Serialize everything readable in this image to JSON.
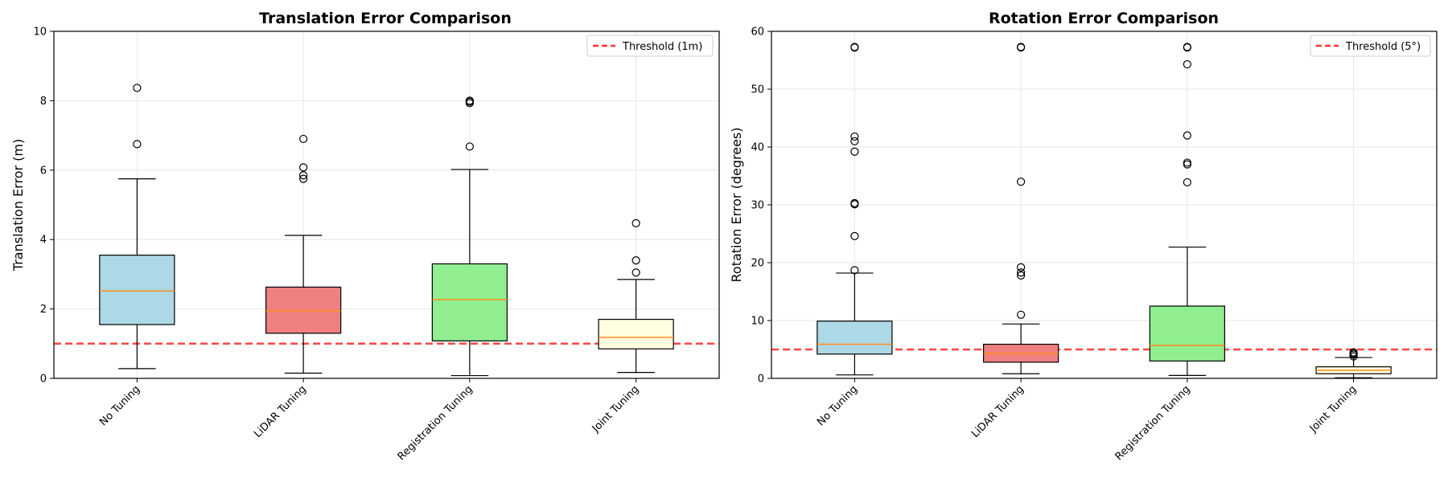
{
  "chart_data": [
    {
      "type": "box",
      "title": "Translation Error Comparison",
      "ylabel": "Translation Error (m)",
      "xlabel": "",
      "ylim": [
        0,
        10
      ],
      "yticks": [
        0,
        2,
        4,
        6,
        8,
        10
      ],
      "grid": true,
      "legend_position": "top-right",
      "threshold": {
        "value": 1,
        "label": "Threshold (1m)",
        "color": "#ff3333"
      },
      "categories": [
        "No Tuning",
        "LiDAR Tuning",
        "Registration Tuning",
        "Joint Tuning"
      ],
      "colors": [
        "#add8e6",
        "#f08080",
        "#90ee90",
        "#ffffe0"
      ],
      "median_color": "#ff8c1a",
      "boxes": [
        {
          "whisker_low": 0.28,
          "q1": 1.55,
          "median": 2.52,
          "q3": 3.55,
          "whisker_high": 5.75,
          "outliers": [
            6.75,
            8.37
          ]
        },
        {
          "whisker_low": 0.15,
          "q1": 1.3,
          "median": 1.95,
          "q3": 2.63,
          "whisker_high": 4.12,
          "outliers": [
            5.75,
            5.85,
            6.08,
            6.9
          ]
        },
        {
          "whisker_low": 0.08,
          "q1": 1.08,
          "median": 2.27,
          "q3": 3.3,
          "whisker_high": 6.02,
          "outliers": [
            6.68,
            7.93,
            7.97,
            8.0
          ]
        },
        {
          "whisker_low": 0.17,
          "q1": 0.85,
          "median": 1.18,
          "q3": 1.7,
          "whisker_high": 2.85,
          "outliers": [
            3.05,
            3.4,
            4.47
          ]
        }
      ]
    },
    {
      "type": "box",
      "title": "Rotation Error Comparison",
      "ylabel": "Rotation Error (degrees)",
      "xlabel": "",
      "ylim": [
        0,
        60
      ],
      "yticks": [
        0,
        10,
        20,
        30,
        40,
        50,
        60
      ],
      "grid": true,
      "legend_position": "top-right",
      "threshold": {
        "value": 5,
        "label": "Threshold (5°)",
        "color": "#ff3333"
      },
      "categories": [
        "No Tuning",
        "LiDAR Tuning",
        "Registration Tuning",
        "Joint Tuning"
      ],
      "colors": [
        "#add8e6",
        "#f08080",
        "#90ee90",
        "#ffffe0"
      ],
      "median_color": "#ff8c1a",
      "boxes": [
        {
          "whisker_low": 0.6,
          "q1": 4.2,
          "median": 5.9,
          "q3": 9.9,
          "whisker_high": 18.2,
          "outliers": [
            18.7,
            24.6,
            30.1,
            30.3,
            39.2,
            41.0,
            41.8,
            57.2,
            57.3
          ]
        },
        {
          "whisker_low": 0.8,
          "q1": 2.8,
          "median": 4.3,
          "q3": 5.9,
          "whisker_high": 9.4,
          "outliers": [
            11.0,
            17.8,
            18.3,
            19.2,
            34.0,
            57.2,
            57.3
          ]
        },
        {
          "whisker_low": 0.5,
          "q1": 3.0,
          "median": 5.7,
          "q3": 12.5,
          "whisker_high": 22.7,
          "outliers": [
            33.9,
            37.0,
            37.3,
            42.0,
            54.3,
            57.2,
            57.3
          ]
        },
        {
          "whisker_low": 0.1,
          "q1": 0.8,
          "median": 1.4,
          "q3": 2.0,
          "whisker_high": 3.6,
          "outliers": [
            3.8,
            4.1,
            4.3,
            4.5
          ]
        }
      ]
    }
  ]
}
